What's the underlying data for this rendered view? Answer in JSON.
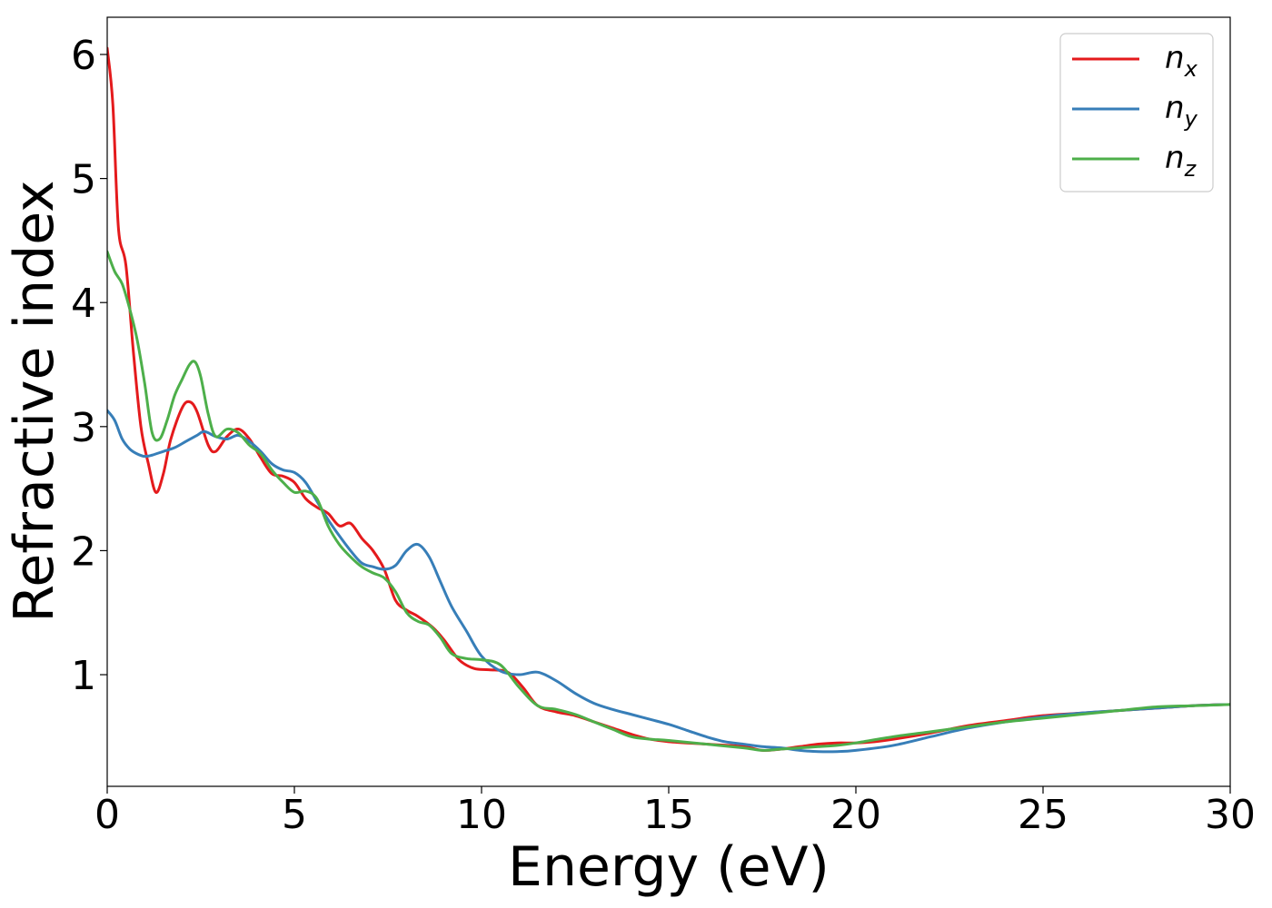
{
  "chart_data": {
    "type": "line",
    "xlabel": "Energy (eV)",
    "ylabel": "Refractive index",
    "xlim": [
      0,
      30
    ],
    "ylim": [
      0.1,
      6.3
    ],
    "xticks": [
      0,
      5,
      10,
      15,
      20,
      25,
      30
    ],
    "xtick_labels": [
      "0",
      "5",
      "10",
      "15",
      "20",
      "25",
      "30"
    ],
    "yticks": [
      1,
      2,
      3,
      4,
      5,
      6
    ],
    "ytick_labels": [
      "1",
      "2",
      "3",
      "4",
      "5",
      "6"
    ],
    "grid": false,
    "legend_position": "top-right",
    "series": [
      {
        "name": "n_x",
        "legend_base": "n",
        "legend_sub": "x",
        "color": "#e41a1c",
        "x": [
          0,
          0.15,
          0.3,
          0.5,
          0.7,
          0.9,
          1.1,
          1.3,
          1.5,
          1.7,
          2.0,
          2.2,
          2.4,
          2.7,
          2.9,
          3.2,
          3.5,
          3.8,
          4.1,
          4.4,
          4.7,
          5.0,
          5.3,
          5.6,
          5.9,
          6.2,
          6.5,
          6.8,
          7.1,
          7.4,
          7.7,
          8.0,
          8.3,
          8.7,
          9.0,
          9.4,
          9.8,
          10.2,
          10.7,
          11.1,
          11.5,
          12.0,
          12.5,
          13.0,
          13.5,
          14.0,
          14.5,
          15.0,
          16.0,
          17.0,
          17.5,
          18.0,
          18.5,
          19.0,
          19.5,
          20.0,
          20.5,
          21.0,
          22.0,
          23.0,
          24.0,
          25.0,
          26.0,
          27.0,
          28.0,
          29.0,
          30.0
        ],
        "y": [
          6.05,
          5.6,
          4.6,
          4.3,
          3.6,
          3.0,
          2.7,
          2.47,
          2.62,
          2.9,
          3.15,
          3.2,
          3.12,
          2.85,
          2.8,
          2.92,
          2.98,
          2.9,
          2.75,
          2.62,
          2.6,
          2.55,
          2.42,
          2.35,
          2.3,
          2.2,
          2.22,
          2.1,
          2.0,
          1.85,
          1.6,
          1.52,
          1.47,
          1.38,
          1.28,
          1.12,
          1.05,
          1.04,
          1.02,
          0.9,
          0.75,
          0.7,
          0.67,
          0.62,
          0.57,
          0.52,
          0.48,
          0.46,
          0.44,
          0.42,
          0.39,
          0.4,
          0.42,
          0.44,
          0.45,
          0.45,
          0.46,
          0.48,
          0.53,
          0.59,
          0.63,
          0.67,
          0.69,
          0.71,
          0.73,
          0.75,
          0.76
        ]
      },
      {
        "name": "n_y",
        "legend_base": "n",
        "legend_sub": "y",
        "color": "#377eb8",
        "x": [
          0,
          0.2,
          0.4,
          0.6,
          0.8,
          1.0,
          1.2,
          1.5,
          1.8,
          2.1,
          2.4,
          2.6,
          2.9,
          3.2,
          3.5,
          3.8,
          4.1,
          4.4,
          4.7,
          5.0,
          5.3,
          5.6,
          5.9,
          6.2,
          6.5,
          6.8,
          7.1,
          7.4,
          7.7,
          8.0,
          8.3,
          8.6,
          8.9,
          9.2,
          9.6,
          10.0,
          10.5,
          11.0,
          11.5,
          12.0,
          12.5,
          13.0,
          13.5,
          14.0,
          14.5,
          15.0,
          15.5,
          16.0,
          16.5,
          17.0,
          17.5,
          18.0,
          18.5,
          19.0,
          19.5,
          20.0,
          21.0,
          22.0,
          23.0,
          24.0,
          25.0,
          26.0,
          27.0,
          28.0,
          29.0,
          30.0
        ],
        "y": [
          3.13,
          3.05,
          2.9,
          2.82,
          2.78,
          2.76,
          2.77,
          2.8,
          2.83,
          2.88,
          2.93,
          2.96,
          2.92,
          2.9,
          2.93,
          2.88,
          2.8,
          2.7,
          2.65,
          2.63,
          2.55,
          2.4,
          2.25,
          2.12,
          2.0,
          1.9,
          1.87,
          1.85,
          1.88,
          2.0,
          2.05,
          1.95,
          1.75,
          1.55,
          1.35,
          1.15,
          1.03,
          1.0,
          1.02,
          0.95,
          0.85,
          0.77,
          0.72,
          0.68,
          0.64,
          0.6,
          0.55,
          0.5,
          0.46,
          0.44,
          0.42,
          0.41,
          0.39,
          0.38,
          0.38,
          0.39,
          0.43,
          0.5,
          0.57,
          0.62,
          0.66,
          0.69,
          0.71,
          0.73,
          0.75,
          0.76
        ]
      },
      {
        "name": "n_z",
        "legend_base": "n",
        "legend_sub": "z",
        "color": "#4daf4a",
        "x": [
          0,
          0.2,
          0.4,
          0.6,
          0.8,
          1.0,
          1.2,
          1.4,
          1.6,
          1.8,
          2.0,
          2.2,
          2.35,
          2.5,
          2.7,
          2.9,
          3.2,
          3.5,
          3.8,
          4.1,
          4.4,
          4.7,
          5.0,
          5.3,
          5.6,
          5.9,
          6.2,
          6.5,
          6.8,
          7.1,
          7.4,
          7.7,
          8.0,
          8.3,
          8.6,
          8.9,
          9.2,
          9.6,
          10.0,
          10.5,
          11.0,
          11.5,
          12.0,
          12.5,
          13.0,
          13.5,
          14.0,
          14.5,
          15.0,
          16.0,
          17.0,
          17.5,
          18.0,
          18.5,
          19.0,
          19.5,
          20.0,
          21.0,
          22.0,
          23.0,
          24.0,
          25.0,
          26.0,
          27.0,
          28.0,
          29.0,
          30.0
        ],
        "y": [
          4.41,
          4.25,
          4.15,
          3.95,
          3.7,
          3.35,
          2.95,
          2.9,
          3.05,
          3.25,
          3.38,
          3.5,
          3.52,
          3.4,
          3.1,
          2.92,
          2.98,
          2.95,
          2.85,
          2.78,
          2.65,
          2.55,
          2.47,
          2.48,
          2.42,
          2.2,
          2.05,
          1.95,
          1.87,
          1.82,
          1.78,
          1.67,
          1.5,
          1.43,
          1.4,
          1.3,
          1.17,
          1.13,
          1.12,
          1.08,
          0.9,
          0.75,
          0.72,
          0.68,
          0.62,
          0.56,
          0.5,
          0.48,
          0.47,
          0.44,
          0.41,
          0.39,
          0.4,
          0.41,
          0.42,
          0.43,
          0.45,
          0.5,
          0.54,
          0.58,
          0.62,
          0.65,
          0.68,
          0.71,
          0.74,
          0.75,
          0.76
        ]
      }
    ]
  }
}
